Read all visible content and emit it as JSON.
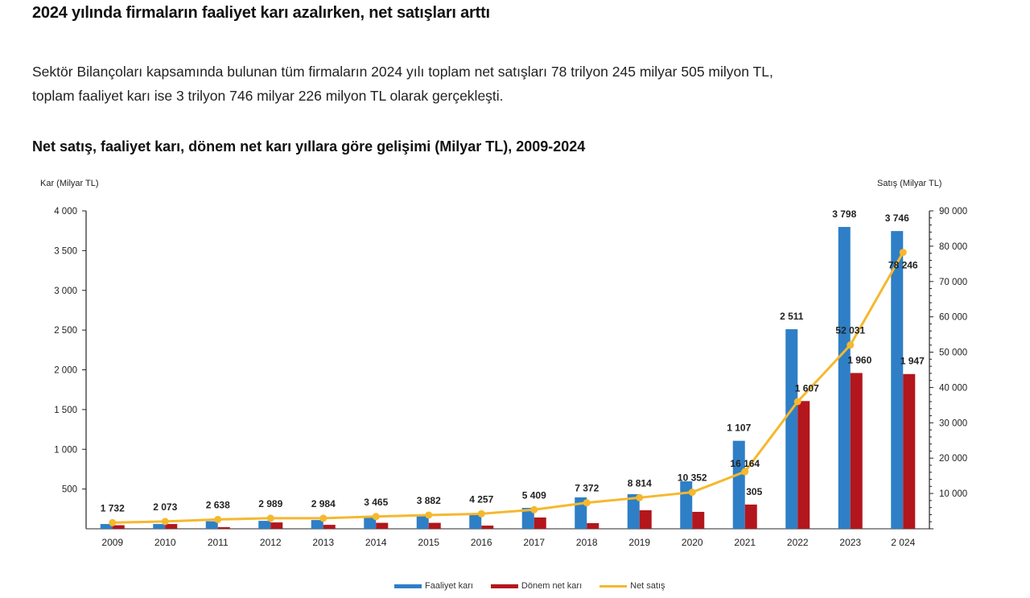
{
  "headline": "2024 yılında firmaların faaliyet karı azalırken, net satışları arttı",
  "paragraph": {
    "line1": "Sektör Bilançoları kapsamında bulunan tüm firmaların 2024 yılı toplam net satışları 78 trilyon 245 milyar 505 milyon TL,",
    "line2": "toplam faaliyet karı ise 3 trilyon 746 milyar 226 milyon TL olarak gerçekleşti."
  },
  "colors": {
    "faaliyet_kari": "#2e7fc6",
    "donem_net_kari": "#b3161c",
    "net_satis": "#f5b82e"
  },
  "chart_data": {
    "type": "bar",
    "title": "Net satış, faaliyet karı, dönem net karı yıllara göre gelişimi (Milyar TL), 2009-2024",
    "ylabel": "Kar (Milyar TL)",
    "y2label": "Satış (Milyar TL)",
    "ylim": [
      0,
      4000
    ],
    "y2lim": [
      0,
      90000
    ],
    "yticks": [
      "4 000",
      "3 500",
      "3 000",
      "2 500",
      "2 000",
      "1 500",
      "1 000",
      "500"
    ],
    "y2ticks": [
      "90 000",
      "80 000",
      "70 000",
      "60 000",
      "50 000",
      "40 000",
      "30 000",
      "20 000",
      "10 000"
    ],
    "categories": [
      "2009",
      "2010",
      "2011",
      "2012",
      "2013",
      "2014",
      "2015",
      "2016",
      "2017",
      "2018",
      "2019",
      "2020",
      "2021",
      "2022",
      "2023",
      "2 024"
    ],
    "series": [
      {
        "name": "Faaliyet karı",
        "type": "bar",
        "axis": "left",
        "values": [
          60,
          60,
          95,
          100,
          110,
          150,
          170,
          175,
          263,
          395,
          435,
          597,
          1107,
          2511,
          3798,
          3746
        ],
        "labels": [
          "",
          "",
          "",
          "",
          "",
          "",
          "",
          "",
          "",
          "",
          "",
          "",
          "1 107",
          "2 511",
          "3 798",
          "3 746"
        ]
      },
      {
        "name": "Dönem net karı",
        "type": "bar",
        "axis": "left",
        "values": [
          45,
          60,
          20,
          80,
          50,
          75,
          75,
          40,
          142,
          71,
          233,
          213,
          305,
          1607,
          1960,
          1947
        ],
        "labels": [
          "",
          "",
          "",
          "",
          "",
          "",
          "",
          "",
          "",
          "",
          "",
          "",
          "305",
          "1 607",
          "1 960",
          "1 947"
        ]
      },
      {
        "name": "Net satış",
        "type": "line",
        "axis": "right",
        "values": [
          1732,
          2073,
          2638,
          2989,
          2984,
          3465,
          3882,
          4257,
          5409,
          7372,
          8814,
          10352,
          16164,
          36000,
          52031,
          78246
        ],
        "labels": [
          "1 732",
          "2 073",
          "2 638",
          "2 989",
          "2 984",
          "3 465",
          "3 882",
          "4 257",
          "5 409",
          "7 372",
          "8 814",
          "10 352",
          "16 164",
          "",
          "52 031",
          "78 246"
        ]
      }
    ],
    "legend_position": "bottom",
    "grid": false
  },
  "legend": {
    "items": [
      "Faaliyet karı",
      "Dönem net karı",
      "Net satış"
    ]
  }
}
